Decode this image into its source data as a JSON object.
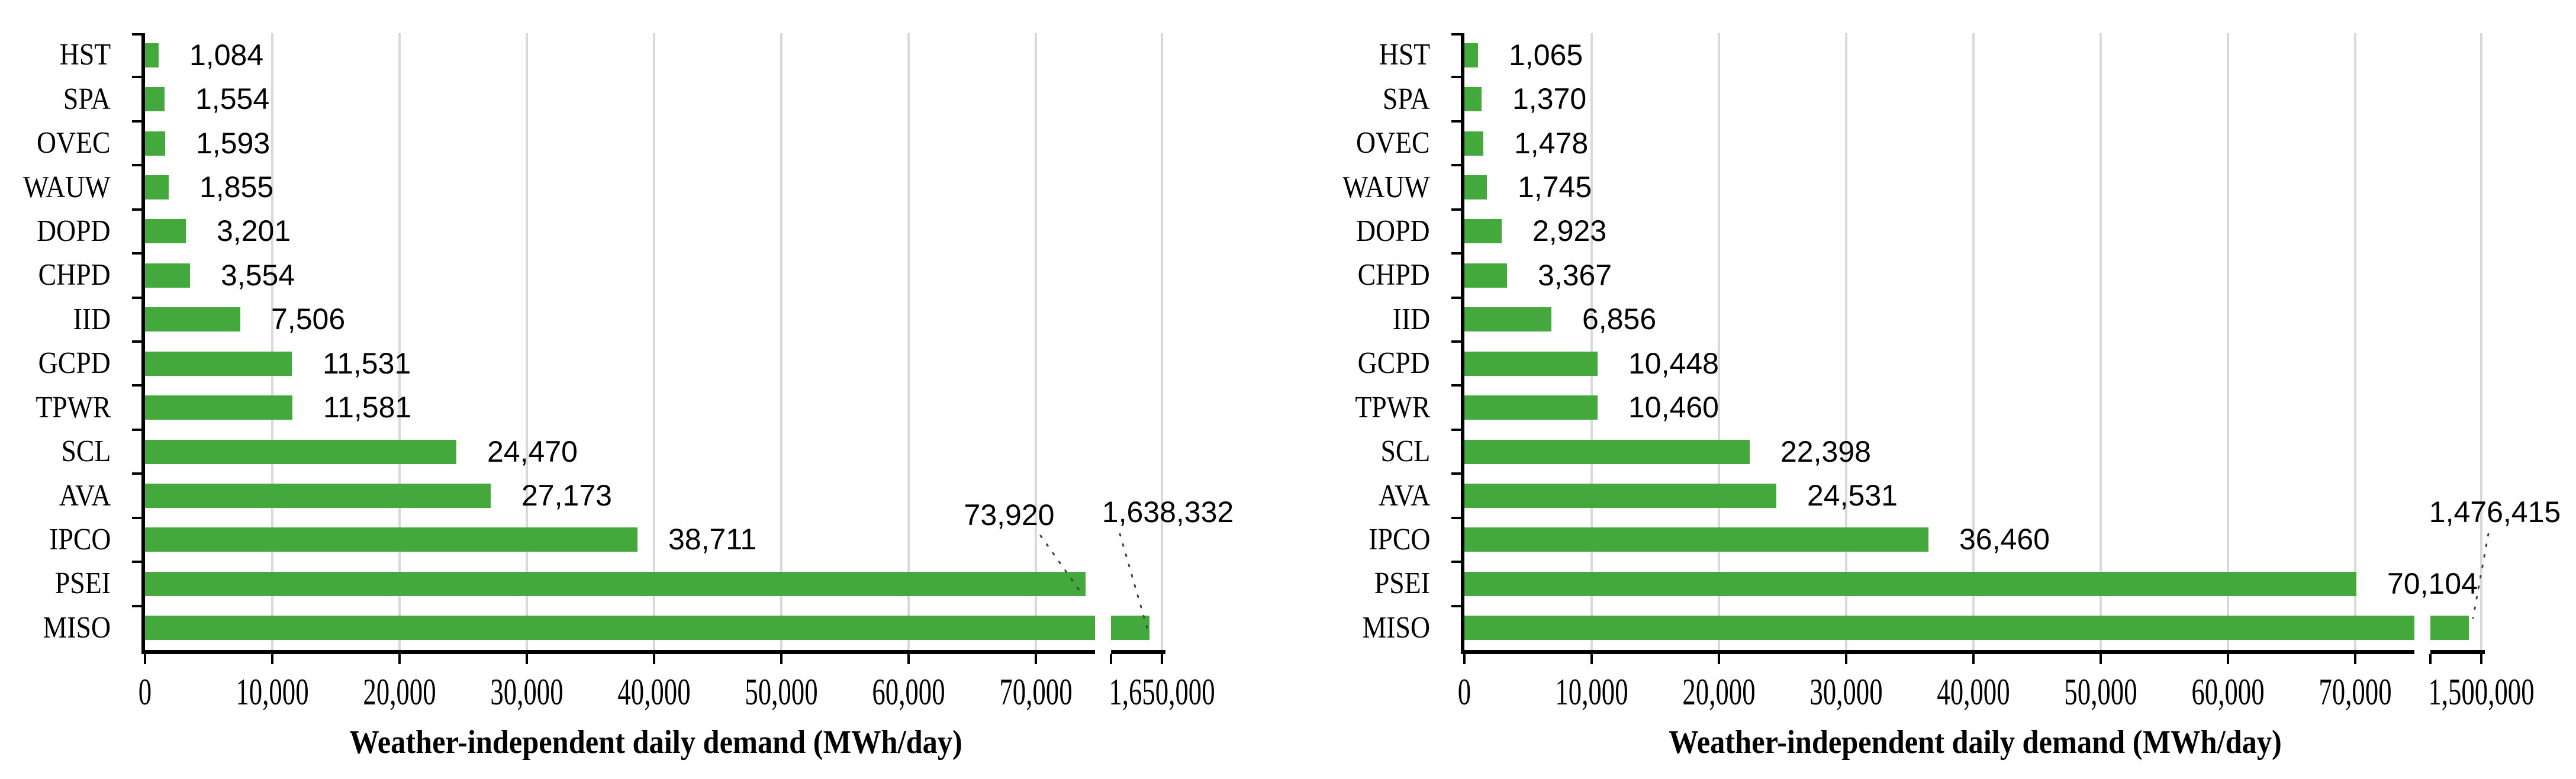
{
  "figure": {
    "description": "Two horizontal bar charts of weather-independent daily demand by balancing authority, each with a broken x-axis before the MISO value"
  },
  "colors": {
    "bar": "#44A93D",
    "gridline": "#D9D9D9",
    "axis": "#000000",
    "text": "#000000",
    "leader_line": "#3F3F3F",
    "background": "#FFFFFF"
  },
  "chart_data": [
    {
      "type": "bar",
      "orientation": "horizontal",
      "categories": [
        "HST",
        "SPA",
        "OVEC",
        "WAUW",
        "DOPD",
        "CHPD",
        "IID",
        "GCPD",
        "TPWR",
        "SCL",
        "AVA",
        "IPCO",
        "PSEI",
        "MISO"
      ],
      "values": [
        1084,
        1554,
        1593,
        1855,
        3201,
        3554,
        7506,
        11531,
        11581,
        24470,
        27173,
        38711,
        73920,
        1638332
      ],
      "value_labels": [
        "1,084",
        "1,554",
        "1,593",
        "1,855",
        "3,201",
        "3,554",
        "7,506",
        "11,531",
        "11,581",
        "24,470",
        "27,173",
        "38,711",
        "73,920",
        "1,638,332"
      ],
      "x_tick_labels": [
        "0",
        "10,000",
        "20,000",
        "30,000",
        "40,000",
        "50,000",
        "60,000",
        "70,000",
        "1,650,000"
      ],
      "x_tick_values": [
        0,
        10000,
        20000,
        30000,
        40000,
        50000,
        60000,
        70000,
        1650000
      ],
      "xlabel": "Weather-independent daily demand (MWh/day)",
      "ylabel": "",
      "title": "",
      "grid": true,
      "axis_break": {
        "present": true,
        "after_value": 70000,
        "resume_label": "1,650,000"
      },
      "floating_value_labels": [
        "PSEI",
        "MISO"
      ],
      "xlim_main": [
        0,
        78000
      ]
    },
    {
      "type": "bar",
      "orientation": "horizontal",
      "categories": [
        "HST",
        "SPA",
        "OVEC",
        "WAUW",
        "DOPD",
        "CHPD",
        "IID",
        "GCPD",
        "TPWR",
        "SCL",
        "AVA",
        "IPCO",
        "PSEI",
        "MISO"
      ],
      "values": [
        1065,
        1370,
        1478,
        1745,
        2923,
        3367,
        6856,
        10448,
        10460,
        22398,
        24531,
        36460,
        70104,
        1476415
      ],
      "value_labels": [
        "1,065",
        "1,370",
        "1,478",
        "1,745",
        "2,923",
        "3,367",
        "6,856",
        "10,448",
        "10,460",
        "22,398",
        "24,531",
        "36,460",
        "70,104",
        "1,476,415"
      ],
      "x_tick_labels": [
        "0",
        "10,000",
        "20,000",
        "30,000",
        "40,000",
        "50,000",
        "60,000",
        "70,000",
        "1,500,000"
      ],
      "x_tick_values": [
        0,
        10000,
        20000,
        30000,
        40000,
        50000,
        60000,
        70000,
        1500000
      ],
      "xlabel": "Weather-independent daily demand (MWh/day)",
      "ylabel": "",
      "title": "",
      "grid": true,
      "axis_break": {
        "present": true,
        "after_value": 70000,
        "resume_label": "1,500,000"
      },
      "floating_value_labels": [
        "MISO"
      ],
      "xlim_main": [
        0,
        78000
      ]
    }
  ]
}
